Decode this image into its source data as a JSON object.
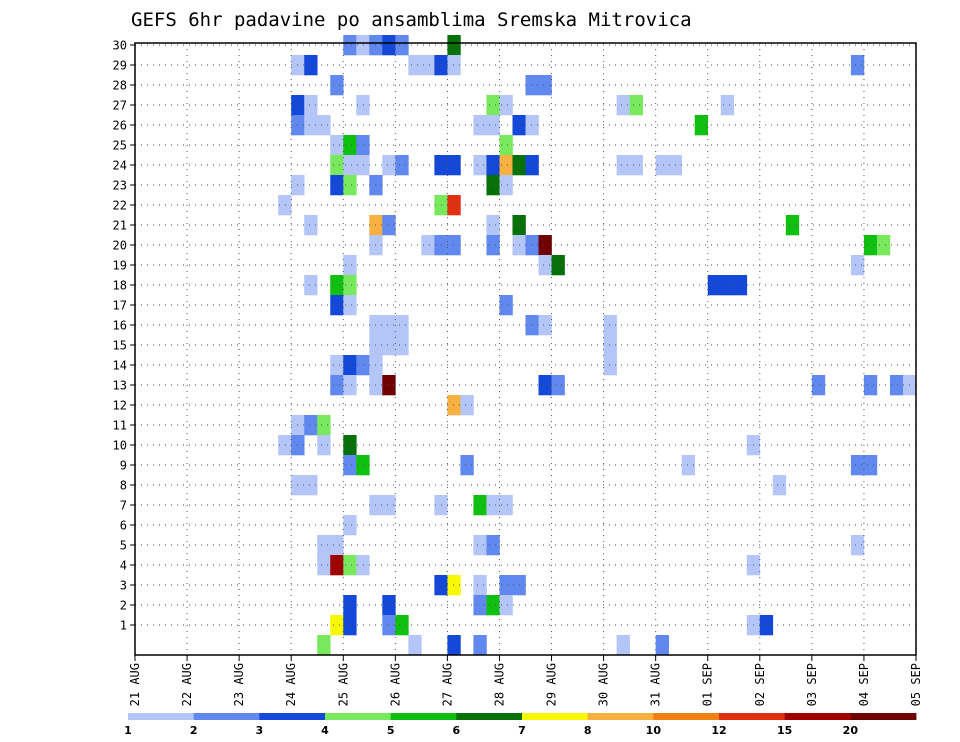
{
  "chart_data": {
    "type": "heatmap",
    "title": "GEFS 6hr padavine po ansamblima Sremska Mitrovica",
    "xlabel": "",
    "ylabel": "",
    "x_ticks": [
      "21 AUG",
      "22 AUG",
      "23 AUG",
      "24 AUG",
      "25 AUG",
      "26 AUG",
      "27 AUG",
      "28 AUG",
      "29 AUG",
      "30 AUG",
      "31 AUG",
      "01 SEP",
      "02 SEP",
      "03 SEP",
      "04 SEP",
      "05 SEP"
    ],
    "x_range": [
      "21 AUG 00Z",
      "05 SEP 00Z"
    ],
    "x_step_hours": 6,
    "y_ticks": [
      1,
      2,
      3,
      4,
      5,
      6,
      7,
      8,
      9,
      10,
      11,
      12,
      13,
      14,
      15,
      16,
      17,
      18,
      19,
      20,
      21,
      22,
      23,
      24,
      25,
      26,
      27,
      28,
      29,
      30
    ],
    "y_range": [
      0,
      30
    ],
    "grid": true,
    "legend_position": "bottom",
    "color_levels": [
      1,
      2,
      3,
      4,
      5,
      6,
      7,
      8,
      10,
      12,
      15,
      20
    ],
    "level_labels": [
      "1",
      "2",
      "3",
      "4",
      "5",
      "6",
      "7",
      "8",
      "10",
      "12",
      "15",
      "20"
    ],
    "level_colors": [
      "#b4c6f8",
      "#6088ee",
      "#1448d8",
      "#78e85c",
      "#10c010",
      "#087008",
      "#f8f800",
      "#f8b040",
      "#f08010",
      "#e03010",
      "#a00000",
      "#700000"
    ],
    "cells": [
      {
        "member": 30,
        "date": "25 AUG",
        "step": 0,
        "cls": 2
      },
      {
        "member": 30,
        "date": "25 AUG",
        "step": 1,
        "cls": 1
      },
      {
        "member": 30,
        "date": "25 AUG",
        "step": 2,
        "cls": 2
      },
      {
        "member": 30,
        "date": "25 AUG",
        "step": 3,
        "cls": 3
      },
      {
        "member": 30,
        "date": "26 AUG",
        "step": 0,
        "cls": 2
      },
      {
        "member": 30,
        "date": "27 AUG",
        "step": 0,
        "cls": 6
      },
      {
        "member": 29,
        "date": "24 AUG",
        "step": 0,
        "cls": 1
      },
      {
        "member": 29,
        "date": "24 AUG",
        "step": 1,
        "cls": 3
      },
      {
        "member": 29,
        "date": "26 AUG",
        "step": 1,
        "cls": 1
      },
      {
        "member": 29,
        "date": "26 AUG",
        "step": 2,
        "cls": 1
      },
      {
        "member": 29,
        "date": "26 AUG",
        "step": 3,
        "cls": 3
      },
      {
        "member": 29,
        "date": "27 AUG",
        "step": 0,
        "cls": 1
      },
      {
        "member": 29,
        "date": "03 SEP",
        "step": 3,
        "cls": 2
      },
      {
        "member": 28,
        "date": "24 AUG",
        "step": 3,
        "cls": 2
      },
      {
        "member": 28,
        "date": "28 AUG",
        "step": 2,
        "cls": 2
      },
      {
        "member": 28,
        "date": "28 AUG",
        "step": 3,
        "cls": 2
      },
      {
        "member": 27,
        "date": "24 AUG",
        "step": 0,
        "cls": 3
      },
      {
        "member": 27,
        "date": "24 AUG",
        "step": 1,
        "cls": 1
      },
      {
        "member": 27,
        "date": "25 AUG",
        "step": 1,
        "cls": 1
      },
      {
        "member": 27,
        "date": "27 AUG",
        "step": 3,
        "cls": 4
      },
      {
        "member": 27,
        "date": "28 AUG",
        "step": 0,
        "cls": 1
      },
      {
        "member": 27,
        "date": "30 AUG",
        "step": 1,
        "cls": 1
      },
      {
        "member": 27,
        "date": "30 AUG",
        "step": 2,
        "cls": 4
      },
      {
        "member": 27,
        "date": "01 SEP",
        "step": 1,
        "cls": 1
      },
      {
        "member": 26,
        "date": "24 AUG",
        "step": 0,
        "cls": 2
      },
      {
        "member": 26,
        "date": "24 AUG",
        "step": 1,
        "cls": 1
      },
      {
        "member": 26,
        "date": "24 AUG",
        "step": 2,
        "cls": 1
      },
      {
        "member": 26,
        "date": "27 AUG",
        "step": 2,
        "cls": 1
      },
      {
        "member": 26,
        "date": "27 AUG",
        "step": 3,
        "cls": 1
      },
      {
        "member": 26,
        "date": "28 AUG",
        "step": 1,
        "cls": 3
      },
      {
        "member": 26,
        "date": "28 AUG",
        "step": 2,
        "cls": 1
      },
      {
        "member": 26,
        "date": "31 AUG",
        "step": 3,
        "cls": 5
      },
      {
        "member": 25,
        "date": "24 AUG",
        "step": 3,
        "cls": 1
      },
      {
        "member": 25,
        "date": "25 AUG",
        "step": 0,
        "cls": 5
      },
      {
        "member": 25,
        "date": "25 AUG",
        "step": 1,
        "cls": 2
      },
      {
        "member": 25,
        "date": "28 AUG",
        "step": 0,
        "cls": 4
      },
      {
        "member": 24,
        "date": "24 AUG",
        "step": 3,
        "cls": 4
      },
      {
        "member": 24,
        "date": "25 AUG",
        "step": 0,
        "cls": 1
      },
      {
        "member": 24,
        "date": "25 AUG",
        "step": 1,
        "cls": 1
      },
      {
        "member": 24,
        "date": "25 AUG",
        "step": 3,
        "cls": 1
      },
      {
        "member": 24,
        "date": "26 AUG",
        "step": 0,
        "cls": 2
      },
      {
        "member": 24,
        "date": "26 AUG",
        "step": 3,
        "cls": 3
      },
      {
        "member": 24,
        "date": "27 AUG",
        "step": 0,
        "cls": 3
      },
      {
        "member": 24,
        "date": "27 AUG",
        "step": 2,
        "cls": 1
      },
      {
        "member": 24,
        "date": "27 AUG",
        "step": 3,
        "cls": 3
      },
      {
        "member": 24,
        "date": "28 AUG",
        "step": 0,
        "cls": 8
      },
      {
        "member": 24,
        "date": "28 AUG",
        "step": 1,
        "cls": 6
      },
      {
        "member": 24,
        "date": "28 AUG",
        "step": 2,
        "cls": 3
      },
      {
        "member": 24,
        "date": "30 AUG",
        "step": 1,
        "cls": 1
      },
      {
        "member": 24,
        "date": "30 AUG",
        "step": 2,
        "cls": 1
      },
      {
        "member": 24,
        "date": "31 AUG",
        "step": 0,
        "cls": 1
      },
      {
        "member": 24,
        "date": "31 AUG",
        "step": 1,
        "cls": 1
      },
      {
        "member": 23,
        "date": "24 AUG",
        "step": 0,
        "cls": 1
      },
      {
        "member": 23,
        "date": "24 AUG",
        "step": 3,
        "cls": 3
      },
      {
        "member": 23,
        "date": "25 AUG",
        "step": 0,
        "cls": 4
      },
      {
        "member": 23,
        "date": "25 AUG",
        "step": 2,
        "cls": 2
      },
      {
        "member": 23,
        "date": "27 AUG",
        "step": 3,
        "cls": 6
      },
      {
        "member": 23,
        "date": "28 AUG",
        "step": 0,
        "cls": 1
      },
      {
        "member": 22,
        "date": "23 AUG",
        "step": 3,
        "cls": 1
      },
      {
        "member": 22,
        "date": "26 AUG",
        "step": 3,
        "cls": 4
      },
      {
        "member": 22,
        "date": "27 AUG",
        "step": 0,
        "cls": 10
      },
      {
        "member": 21,
        "date": "24 AUG",
        "step": 1,
        "cls": 1
      },
      {
        "member": 21,
        "date": "25 AUG",
        "step": 2,
        "cls": 8
      },
      {
        "member": 21,
        "date": "25 AUG",
        "step": 3,
        "cls": 2
      },
      {
        "member": 21,
        "date": "27 AUG",
        "step": 3,
        "cls": 1
      },
      {
        "member": 21,
        "date": "28 AUG",
        "step": 1,
        "cls": 6
      },
      {
        "member": 21,
        "date": "02 SEP",
        "step": 2,
        "cls": 5
      },
      {
        "member": 20,
        "date": "25 AUG",
        "step": 2,
        "cls": 1
      },
      {
        "member": 20,
        "date": "26 AUG",
        "step": 2,
        "cls": 1
      },
      {
        "member": 20,
        "date": "26 AUG",
        "step": 3,
        "cls": 2
      },
      {
        "member": 20,
        "date": "27 AUG",
        "step": 0,
        "cls": 2
      },
      {
        "member": 20,
        "date": "27 AUG",
        "step": 3,
        "cls": 2
      },
      {
        "member": 20,
        "date": "28 AUG",
        "step": 1,
        "cls": 1
      },
      {
        "member": 20,
        "date": "28 AUG",
        "step": 2,
        "cls": 2
      },
      {
        "member": 20,
        "date": "28 AUG",
        "step": 3,
        "cls": 12
      },
      {
        "member": 20,
        "date": "04 SEP",
        "step": 0,
        "cls": 5
      },
      {
        "member": 20,
        "date": "04 SEP",
        "step": 1,
        "cls": 4
      },
      {
        "member": 19,
        "date": "25 AUG",
        "step": 0,
        "cls": 1
      },
      {
        "member": 19,
        "date": "28 AUG",
        "step": 3,
        "cls": 1
      },
      {
        "member": 19,
        "date": "29 AUG",
        "step": 0,
        "cls": 6
      },
      {
        "member": 19,
        "date": "03 SEP",
        "step": 3,
        "cls": 1
      },
      {
        "member": 18,
        "date": "24 AUG",
        "step": 1,
        "cls": 1
      },
      {
        "member": 18,
        "date": "24 AUG",
        "step": 3,
        "cls": 5
      },
      {
        "member": 18,
        "date": "25 AUG",
        "step": 0,
        "cls": 4
      },
      {
        "member": 18,
        "date": "01 SEP",
        "step": 0,
        "cls": 3
      },
      {
        "member": 18,
        "date": "01 SEP",
        "step": 1,
        "cls": 3
      },
      {
        "member": 18,
        "date": "01 SEP",
        "step": 2,
        "cls": 3
      },
      {
        "member": 17,
        "date": "24 AUG",
        "step": 3,
        "cls": 3
      },
      {
        "member": 17,
        "date": "25 AUG",
        "step": 0,
        "cls": 1
      },
      {
        "member": 17,
        "date": "28 AUG",
        "step": 0,
        "cls": 2
      },
      {
        "member": 16,
        "date": "25 AUG",
        "step": 2,
        "cls": 1
      },
      {
        "member": 16,
        "date": "25 AUG",
        "step": 3,
        "cls": 1
      },
      {
        "member": 16,
        "date": "26 AUG",
        "step": 0,
        "cls": 1
      },
      {
        "member": 16,
        "date": "28 AUG",
        "step": 2,
        "cls": 2
      },
      {
        "member": 16,
        "date": "28 AUG",
        "step": 3,
        "cls": 1
      },
      {
        "member": 16,
        "date": "30 AUG",
        "step": 0,
        "cls": 1
      },
      {
        "member": 15,
        "date": "25 AUG",
        "step": 2,
        "cls": 1
      },
      {
        "member": 15,
        "date": "25 AUG",
        "step": 3,
        "cls": 1
      },
      {
        "member": 15,
        "date": "26 AUG",
        "step": 0,
        "cls": 1
      },
      {
        "member": 15,
        "date": "30 AUG",
        "step": 0,
        "cls": 1
      },
      {
        "member": 14,
        "date": "24 AUG",
        "step": 3,
        "cls": 1
      },
      {
        "member": 14,
        "date": "25 AUG",
        "step": 0,
        "cls": 3
      },
      {
        "member": 14,
        "date": "25 AUG",
        "step": 1,
        "cls": 2
      },
      {
        "member": 14,
        "date": "25 AUG",
        "step": 2,
        "cls": 1
      },
      {
        "member": 14,
        "date": "30 AUG",
        "step": 0,
        "cls": 1
      },
      {
        "member": 13,
        "date": "24 AUG",
        "step": 3,
        "cls": 2
      },
      {
        "member": 13,
        "date": "25 AUG",
        "step": 0,
        "cls": 1
      },
      {
        "member": 13,
        "date": "25 AUG",
        "step": 2,
        "cls": 1
      },
      {
        "member": 13,
        "date": "25 AUG",
        "step": 3,
        "cls": 12
      },
      {
        "member": 13,
        "date": "28 AUG",
        "step": 3,
        "cls": 3
      },
      {
        "member": 13,
        "date": "29 AUG",
        "step": 0,
        "cls": 2
      },
      {
        "member": 13,
        "date": "03 SEP",
        "step": 0,
        "cls": 2
      },
      {
        "member": 13,
        "date": "04 SEP",
        "step": 0,
        "cls": 2
      },
      {
        "member": 13,
        "date": "04 SEP",
        "step": 2,
        "cls": 2
      },
      {
        "member": 13,
        "date": "04 SEP",
        "step": 3,
        "cls": 1
      },
      {
        "member": 12,
        "date": "27 AUG",
        "step": 0,
        "cls": 8
      },
      {
        "member": 12,
        "date": "27 AUG",
        "step": 1,
        "cls": 1
      },
      {
        "member": 11,
        "date": "24 AUG",
        "step": 0,
        "cls": 1
      },
      {
        "member": 11,
        "date": "24 AUG",
        "step": 1,
        "cls": 2
      },
      {
        "member": 11,
        "date": "24 AUG",
        "step": 2,
        "cls": 4
      },
      {
        "member": 10,
        "date": "23 AUG",
        "step": 3,
        "cls": 1
      },
      {
        "member": 10,
        "date": "24 AUG",
        "step": 0,
        "cls": 2
      },
      {
        "member": 10,
        "date": "24 AUG",
        "step": 2,
        "cls": 1
      },
      {
        "member": 10,
        "date": "25 AUG",
        "step": 0,
        "cls": 6
      },
      {
        "member": 10,
        "date": "01 SEP",
        "step": 3,
        "cls": 1
      },
      {
        "member": 9,
        "date": "25 AUG",
        "step": 0,
        "cls": 2
      },
      {
        "member": 9,
        "date": "25 AUG",
        "step": 1,
        "cls": 5
      },
      {
        "member": 9,
        "date": "27 AUG",
        "step": 1,
        "cls": 2
      },
      {
        "member": 9,
        "date": "31 AUG",
        "step": 2,
        "cls": 1
      },
      {
        "member": 9,
        "date": "03 SEP",
        "step": 3,
        "cls": 2
      },
      {
        "member": 9,
        "date": "04 SEP",
        "step": 0,
        "cls": 2
      },
      {
        "member": 8,
        "date": "24 AUG",
        "step": 0,
        "cls": 1
      },
      {
        "member": 8,
        "date": "24 AUG",
        "step": 1,
        "cls": 1
      },
      {
        "member": 8,
        "date": "02 SEP",
        "step": 1,
        "cls": 1
      },
      {
        "member": 7,
        "date": "25 AUG",
        "step": 2,
        "cls": 1
      },
      {
        "member": 7,
        "date": "25 AUG",
        "step": 3,
        "cls": 1
      },
      {
        "member": 7,
        "date": "26 AUG",
        "step": 3,
        "cls": 1
      },
      {
        "member": 7,
        "date": "27 AUG",
        "step": 2,
        "cls": 5
      },
      {
        "member": 7,
        "date": "27 AUG",
        "step": 3,
        "cls": 1
      },
      {
        "member": 7,
        "date": "28 AUG",
        "step": 0,
        "cls": 1
      },
      {
        "member": 6,
        "date": "25 AUG",
        "step": 0,
        "cls": 1
      },
      {
        "member": 5,
        "date": "24 AUG",
        "step": 2,
        "cls": 1
      },
      {
        "member": 5,
        "date": "24 AUG",
        "step": 3,
        "cls": 1
      },
      {
        "member": 5,
        "date": "27 AUG",
        "step": 2,
        "cls": 1
      },
      {
        "member": 5,
        "date": "27 AUG",
        "step": 3,
        "cls": 2
      },
      {
        "member": 5,
        "date": "03 SEP",
        "step": 3,
        "cls": 1
      },
      {
        "member": 4,
        "date": "24 AUG",
        "step": 2,
        "cls": 1
      },
      {
        "member": 4,
        "date": "24 AUG",
        "step": 3,
        "cls": 11
      },
      {
        "member": 4,
        "date": "25 AUG",
        "step": 0,
        "cls": 4
      },
      {
        "member": 4,
        "date": "25 AUG",
        "step": 1,
        "cls": 1
      },
      {
        "member": 4,
        "date": "01 SEP",
        "step": 3,
        "cls": 1
      },
      {
        "member": 3,
        "date": "26 AUG",
        "step": 3,
        "cls": 3
      },
      {
        "member": 3,
        "date": "27 AUG",
        "step": 0,
        "cls": 7
      },
      {
        "member": 3,
        "date": "27 AUG",
        "step": 2,
        "cls": 1
      },
      {
        "member": 3,
        "date": "28 AUG",
        "step": 0,
        "cls": 2
      },
      {
        "member": 3,
        "date": "28 AUG",
        "step": 1,
        "cls": 2
      },
      {
        "member": 2,
        "date": "25 AUG",
        "step": 0,
        "cls": 3
      },
      {
        "member": 2,
        "date": "25 AUG",
        "step": 3,
        "cls": 3
      },
      {
        "member": 2,
        "date": "27 AUG",
        "step": 2,
        "cls": 2
      },
      {
        "member": 2,
        "date": "27 AUG",
        "step": 3,
        "cls": 5
      },
      {
        "member": 2,
        "date": "28 AUG",
        "step": 0,
        "cls": 1
      },
      {
        "member": 1,
        "date": "24 AUG",
        "step": 3,
        "cls": 7
      },
      {
        "member": 1,
        "date": "25 AUG",
        "step": 0,
        "cls": 3
      },
      {
        "member": 1,
        "date": "25 AUG",
        "step": 3,
        "cls": 2
      },
      {
        "member": 1,
        "date": "26 AUG",
        "step": 0,
        "cls": 5
      },
      {
        "member": 1,
        "date": "01 SEP",
        "step": 3,
        "cls": 1
      },
      {
        "member": 1,
        "date": "02 SEP",
        "step": 0,
        "cls": 3
      },
      {
        "member": 0,
        "date": "24 AUG",
        "step": 2,
        "cls": 4
      },
      {
        "member": 0,
        "date": "26 AUG",
        "step": 1,
        "cls": 1
      },
      {
        "member": 0,
        "date": "27 AUG",
        "step": 0,
        "cls": 3
      },
      {
        "member": 0,
        "date": "27 AUG",
        "step": 2,
        "cls": 2
      },
      {
        "member": 0,
        "date": "30 AUG",
        "step": 1,
        "cls": 1
      },
      {
        "member": 0,
        "date": "31 AUG",
        "step": 0,
        "cls": 2
      }
    ]
  }
}
